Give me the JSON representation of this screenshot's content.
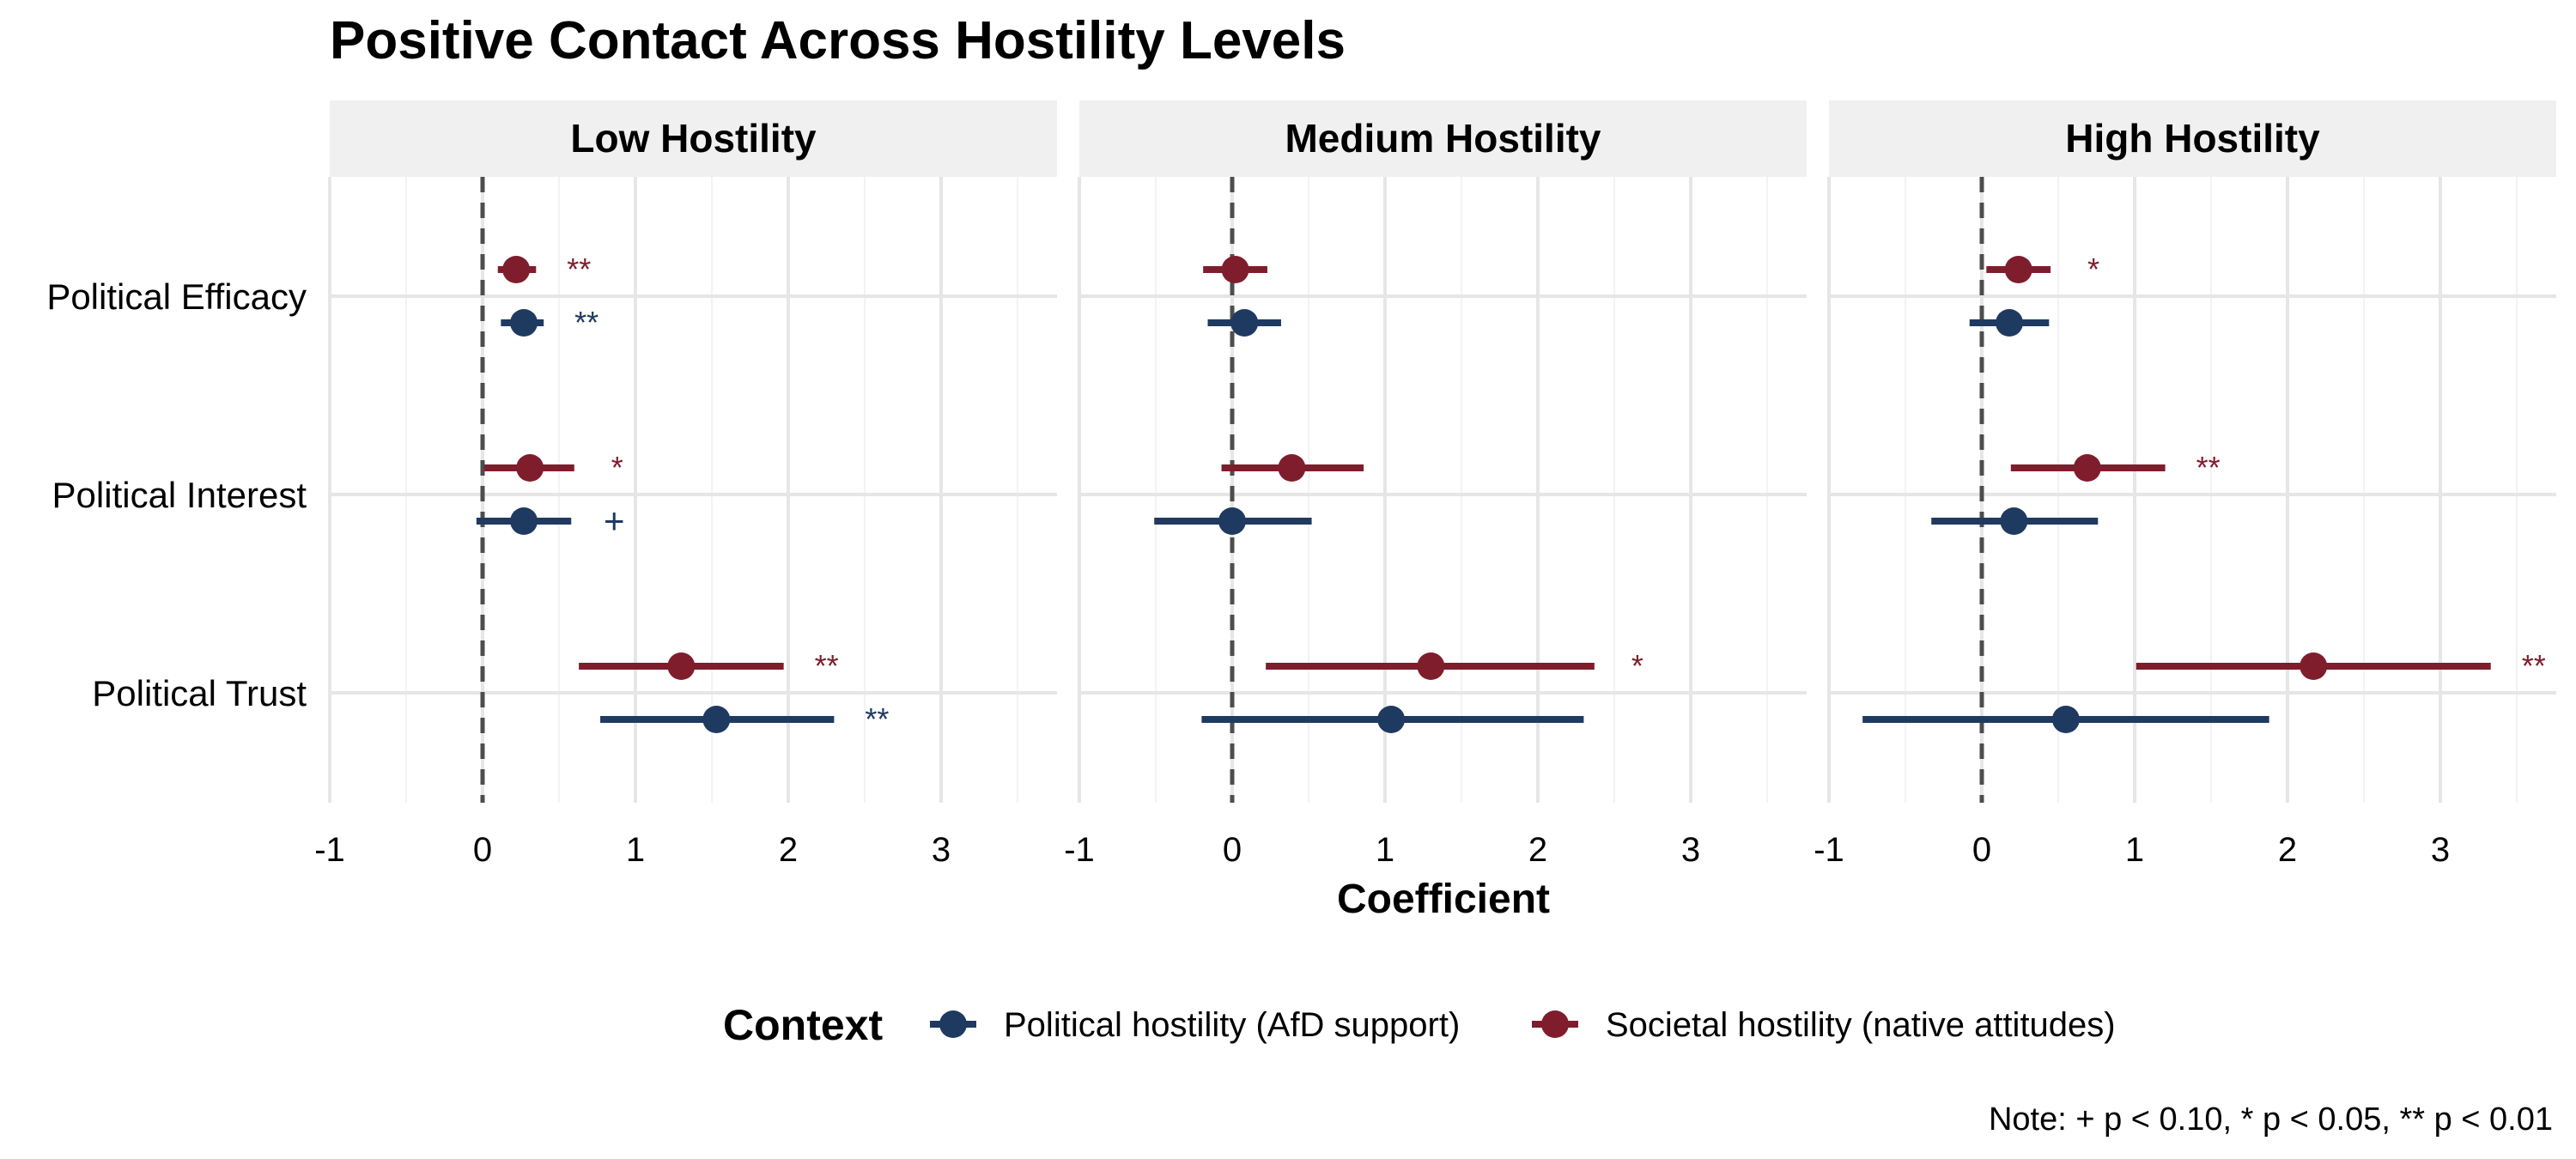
{
  "chart_data": {
    "type": "dot-whisker",
    "title": "Positive Contact Across Hostility Levels",
    "xlabel": "Coefficient",
    "ylabel": "",
    "xlim": [
      -1,
      3.5
    ],
    "xticks": [
      -1,
      0,
      1,
      2,
      3
    ],
    "xtick_labels": [
      "-1",
      "0",
      "1",
      "2",
      "3"
    ],
    "reference_line": 0,
    "grid": true,
    "categories": [
      "Political Efficacy",
      "Political Interest",
      "Political Trust"
    ],
    "legend": {
      "title": "Context",
      "position": "bottom",
      "entries": [
        "Political hostility (AfD support)",
        "Societal hostility (native attitudes)"
      ]
    },
    "note": "Note: + p < 0.10, * p < 0.05, ** p < 0.01",
    "panels": [
      {
        "label": "Low Hostility",
        "series": [
          {
            "name": "Political hostility (AfD support)",
            "color": "#1F3A60",
            "points": [
              {
                "category": "Political Efficacy",
                "estimate": 0.27,
                "low": 0.12,
                "high": 0.4,
                "sig": "**"
              },
              {
                "category": "Political Interest",
                "estimate": 0.27,
                "low": -0.04,
                "high": 0.58,
                "sig": "+"
              },
              {
                "category": "Political Trust",
                "estimate": 1.53,
                "low": 0.77,
                "high": 2.3,
                "sig": "**"
              }
            ]
          },
          {
            "name": "Societal hostility (native attitudes)",
            "color": "#7F1D2D",
            "points": [
              {
                "category": "Political Efficacy",
                "estimate": 0.22,
                "low": 0.1,
                "high": 0.35,
                "sig": "**"
              },
              {
                "category": "Political Interest",
                "estimate": 0.31,
                "low": 0.01,
                "high": 0.6,
                "sig": "*"
              },
              {
                "category": "Political Trust",
                "estimate": 1.3,
                "low": 0.63,
                "high": 1.97,
                "sig": "**"
              }
            ]
          }
        ]
      },
      {
        "label": "Medium Hostility",
        "series": [
          {
            "name": "Political hostility (AfD support)",
            "color": "#1F3A60",
            "points": [
              {
                "category": "Political Efficacy",
                "estimate": 0.08,
                "low": -0.16,
                "high": 0.32,
                "sig": ""
              },
              {
                "category": "Political Interest",
                "estimate": 0.0,
                "low": -0.51,
                "high": 0.52,
                "sig": ""
              },
              {
                "category": "Political Trust",
                "estimate": 1.04,
                "low": -0.2,
                "high": 2.3,
                "sig": ""
              }
            ]
          },
          {
            "name": "Societal hostility (native attitudes)",
            "color": "#7F1D2D",
            "points": [
              {
                "category": "Political Efficacy",
                "estimate": 0.02,
                "low": -0.19,
                "high": 0.23,
                "sig": ""
              },
              {
                "category": "Political Interest",
                "estimate": 0.39,
                "low": -0.07,
                "high": 0.86,
                "sig": ""
              },
              {
                "category": "Political Trust",
                "estimate": 1.3,
                "low": 0.22,
                "high": 2.37,
                "sig": "*"
              }
            ]
          }
        ]
      },
      {
        "label": "High Hostility",
        "series": [
          {
            "name": "Political hostility (AfD support)",
            "color": "#1F3A60",
            "points": [
              {
                "category": "Political Efficacy",
                "estimate": 0.18,
                "low": -0.08,
                "high": 0.44,
                "sig": ""
              },
              {
                "category": "Political Interest",
                "estimate": 0.21,
                "low": -0.33,
                "high": 0.76,
                "sig": ""
              },
              {
                "category": "Political Trust",
                "estimate": 0.55,
                "low": -0.78,
                "high": 1.88,
                "sig": ""
              }
            ]
          },
          {
            "name": "Societal hostility (native attitudes)",
            "color": "#7F1D2D",
            "points": [
              {
                "category": "Political Efficacy",
                "estimate": 0.24,
                "low": 0.03,
                "high": 0.45,
                "sig": "*"
              },
              {
                "category": "Political Interest",
                "estimate": 0.69,
                "low": 0.19,
                "high": 1.2,
                "sig": "**"
              },
              {
                "category": "Political Trust",
                "estimate": 2.17,
                "low": 1.01,
                "high": 3.33,
                "sig": "**"
              }
            ]
          }
        ]
      }
    ]
  }
}
